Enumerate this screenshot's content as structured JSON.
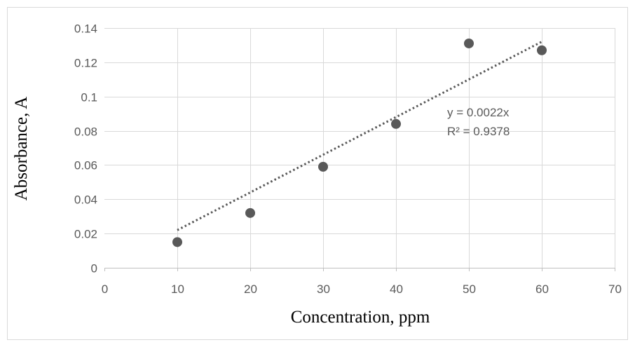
{
  "chart_data": {
    "type": "scatter",
    "title": "",
    "xlabel": "Concentration, ppm",
    "ylabel": "Absorbance, A",
    "xlim": [
      0,
      70
    ],
    "ylim": [
      0,
      0.14
    ],
    "xticks": [
      "0",
      "10",
      "20",
      "30",
      "40",
      "50",
      "60",
      "70"
    ],
    "yticks": [
      "0",
      "0.02",
      "0.04",
      "0.06",
      "0.08",
      "0.1",
      "0.12",
      "0.14"
    ],
    "grid": true,
    "legend": "none",
    "series": [
      {
        "points": [
          {
            "x": 10,
            "y": 0.015
          },
          {
            "x": 20,
            "y": 0.032
          },
          {
            "x": 30,
            "y": 0.059
          },
          {
            "x": 40,
            "y": 0.084
          },
          {
            "x": 50,
            "y": 0.131
          },
          {
            "x": 60,
            "y": 0.127
          }
        ],
        "color": "#595959"
      }
    ],
    "trendline": {
      "type": "linear-through-origin",
      "slope": 0.0022,
      "x_range": [
        10,
        60
      ],
      "style": "dotted",
      "color": "#595959"
    },
    "annotations": {
      "equation": "y = 0.0022x",
      "r_squared": "R² = 0.9378"
    }
  },
  "colors": {
    "grid": "#d9d9d9",
    "axis": "#bfbfbf",
    "frame": "#d9d9d9"
  }
}
